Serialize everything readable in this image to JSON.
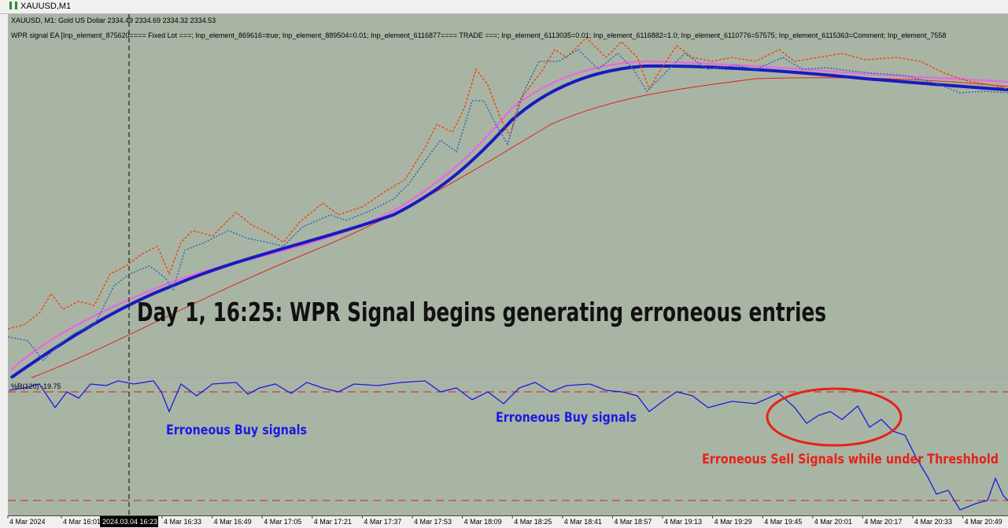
{
  "window": {
    "title": "XAUUSD,M1"
  },
  "chart": {
    "symbol_line": "XAUUSD, M1:  Gold US Dollar  2334.49 2334.69 2334.32 2334.53",
    "ea_line": "WPR signal EA [Inp_element_875620==== Fixed Lot ===; Inp_element_869616=true; Inp_element_889504=0.01; Inp_element_6116877==== TRADE ===; Inp_element_6113035=0.01; Inp_element_6116882=1.0; Inp_element_6110776=57575; Inp_element_6115363=Comment; Inp_element_7558",
    "annotation": "Day 1, 16:25:  WPR Signal begins generating erroneous entries"
  },
  "indicator": {
    "label": "%R(120) -19.75",
    "annotations": [
      "Erroneous Buy signals",
      "Erroneous Buy signals",
      "Erroneous Sell Signals while under Threshhold"
    ]
  },
  "axis": {
    "labels": [
      "4 Mar 2024",
      "4 Mar 16:01",
      "4 Mar 16:33",
      "4 Mar 16:49",
      "4 Mar 17:05",
      "4 Mar 17:21",
      "4 Mar 17:37",
      "4 Mar 17:53",
      "4 Mar 18:09",
      "4 Mar 18:25",
      "4 Mar 18:41",
      "4 Mar 18:57",
      "4 Mar 19:13",
      "4 Mar 19:29",
      "4 Mar 19:45",
      "4 Mar 20:01",
      "4 Mar 20:17",
      "4 Mar 20:33",
      "4 Mar 20:49"
    ],
    "cursor_label": "2024.03.04 16:23"
  }
}
